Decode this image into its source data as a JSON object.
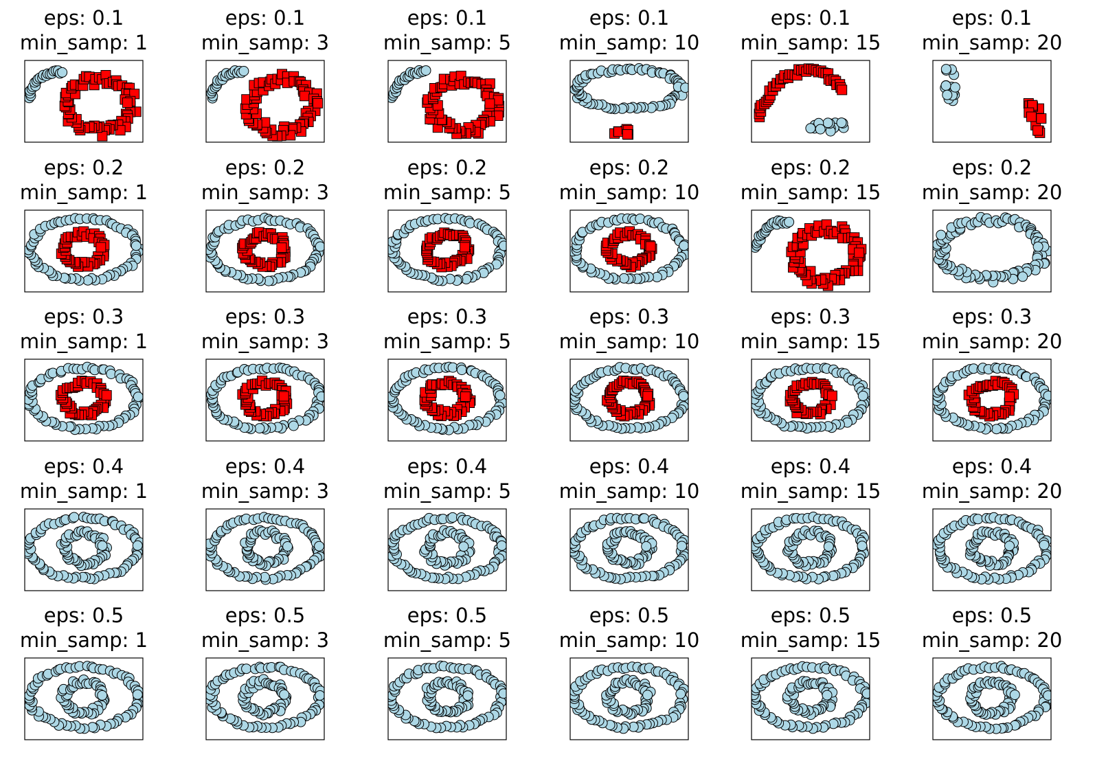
{
  "colors": {
    "cluster_a": "#add8e6",
    "cluster_b": "#ff0000",
    "marker_edge": "#000000",
    "axes_frame": "#000000",
    "background": "#ffffff"
  },
  "layout_words": {
    "rows": 5,
    "cols": 6,
    "axis_ticks": "hidden",
    "legend": "none"
  },
  "chart_data": {
    "type": "scatter",
    "eps_values": [
      0.1,
      0.2,
      0.3,
      0.4,
      0.5
    ],
    "min_samples_values": [
      1,
      3,
      5,
      10,
      15,
      20
    ],
    "panels": [
      {
        "title_line1": "eps: 0.1",
        "title_line2": "min_samp: 1",
        "pattern": "moon_ring"
      },
      {
        "title_line1": "eps: 0.1",
        "title_line2": "min_samp: 3",
        "pattern": "moon_ring"
      },
      {
        "title_line1": "eps: 0.1",
        "title_line2": "min_samp: 5",
        "pattern": "moon_ring"
      },
      {
        "title_line1": "eps: 0.1",
        "title_line2": "min_samp: 10",
        "pattern": "big_ring_small_blob"
      },
      {
        "title_line1": "eps: 0.1",
        "title_line2": "min_samp: 15",
        "pattern": "arc_strip"
      },
      {
        "title_line1": "eps: 0.1",
        "title_line2": "min_samp: 20",
        "pattern": "two_small"
      },
      {
        "title_line1": "eps: 0.2",
        "title_line2": "min_samp: 1",
        "pattern": "rings_split"
      },
      {
        "title_line1": "eps: 0.2",
        "title_line2": "min_samp: 3",
        "pattern": "rings_split"
      },
      {
        "title_line1": "eps: 0.2",
        "title_line2": "min_samp: 5",
        "pattern": "rings_split"
      },
      {
        "title_line1": "eps: 0.2",
        "title_line2": "min_samp: 10",
        "pattern": "rings_split"
      },
      {
        "title_line1": "eps: 0.2",
        "title_line2": "min_samp: 15",
        "pattern": "moon_ring"
      },
      {
        "title_line1": "eps: 0.2",
        "title_line2": "min_samp: 20",
        "pattern": "big_ring_only"
      },
      {
        "title_line1": "eps: 0.3",
        "title_line2": "min_samp: 1",
        "pattern": "rings_split"
      },
      {
        "title_line1": "eps: 0.3",
        "title_line2": "min_samp: 3",
        "pattern": "rings_split"
      },
      {
        "title_line1": "eps: 0.3",
        "title_line2": "min_samp: 5",
        "pattern": "rings_split"
      },
      {
        "title_line1": "eps: 0.3",
        "title_line2": "min_samp: 10",
        "pattern": "rings_split"
      },
      {
        "title_line1": "eps: 0.3",
        "title_line2": "min_samp: 15",
        "pattern": "rings_split"
      },
      {
        "title_line1": "eps: 0.3",
        "title_line2": "min_samp: 20",
        "pattern": "rings_split"
      },
      {
        "title_line1": "eps: 0.4",
        "title_line2": "min_samp: 1",
        "pattern": "rings_one"
      },
      {
        "title_line1": "eps: 0.4",
        "title_line2": "min_samp: 3",
        "pattern": "rings_one"
      },
      {
        "title_line1": "eps: 0.4",
        "title_line2": "min_samp: 5",
        "pattern": "rings_one"
      },
      {
        "title_line1": "eps: 0.4",
        "title_line2": "min_samp: 10",
        "pattern": "rings_one"
      },
      {
        "title_line1": "eps: 0.4",
        "title_line2": "min_samp: 15",
        "pattern": "rings_one"
      },
      {
        "title_line1": "eps: 0.4",
        "title_line2": "min_samp: 20",
        "pattern": "rings_one"
      },
      {
        "title_line1": "eps: 0.5",
        "title_line2": "min_samp: 1",
        "pattern": "rings_one"
      },
      {
        "title_line1": "eps: 0.5",
        "title_line2": "min_samp: 3",
        "pattern": "rings_one"
      },
      {
        "title_line1": "eps: 0.5",
        "title_line2": "min_samp: 5",
        "pattern": "rings_one"
      },
      {
        "title_line1": "eps: 0.5",
        "title_line2": "min_samp: 10",
        "pattern": "rings_one"
      },
      {
        "title_line1": "eps: 0.5",
        "title_line2": "min_samp: 15",
        "pattern": "rings_one"
      },
      {
        "title_line1": "eps: 0.5",
        "title_line2": "min_samp: 20",
        "pattern": "rings_one"
      }
    ]
  }
}
